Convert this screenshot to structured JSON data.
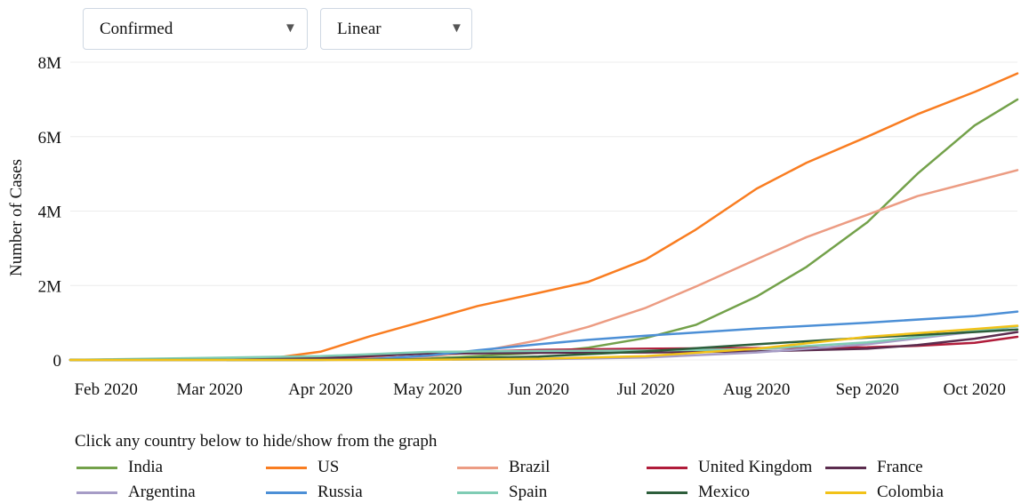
{
  "controls": {
    "metric": {
      "selected": "Confirmed"
    },
    "scale": {
      "selected": "Linear"
    }
  },
  "legend": {
    "title": "Click any country below to hide/show from the graph"
  },
  "chart_data": {
    "type": "line",
    "title": "",
    "xlabel": "",
    "ylabel": "Number of Cases",
    "x_axis_type": "date",
    "xlim": [
      "2020-01-22",
      "2020-10-13"
    ],
    "ylim": [
      0,
      8000000
    ],
    "yticks": [
      0,
      2000000,
      4000000,
      6000000,
      8000000
    ],
    "ytick_labels": [
      "0",
      "2M",
      "4M",
      "6M",
      "8M"
    ],
    "xticks": [
      "2020-02-01",
      "2020-03-01",
      "2020-04-01",
      "2020-05-01",
      "2020-06-01",
      "2020-07-01",
      "2020-08-01",
      "2020-09-01",
      "2020-10-01"
    ],
    "xtick_labels": [
      "Feb 2020",
      "Mar 2020",
      "Apr 2020",
      "May 2020",
      "Jun 2020",
      "Jul 2020",
      "Aug 2020",
      "Sep 2020",
      "Oct 2020"
    ],
    "grid": "horizontal",
    "legend_position": "bottom",
    "series": [
      {
        "name": "India",
        "color": "#73a14a",
        "x": [
          "2020-01-22",
          "2020-04-01",
          "2020-05-01",
          "2020-06-01",
          "2020-06-15",
          "2020-07-01",
          "2020-07-15",
          "2020-08-01",
          "2020-08-15",
          "2020-09-01",
          "2020-09-15",
          "2020-10-01",
          "2020-10-13"
        ],
        "y": [
          0,
          2000,
          35000,
          190000,
          330000,
          590000,
          940000,
          1700000,
          2500000,
          3700000,
          5000000,
          6300000,
          7000000
        ]
      },
      {
        "name": "US",
        "color": "#f97d21",
        "x": [
          "2020-01-22",
          "2020-03-15",
          "2020-04-01",
          "2020-04-15",
          "2020-05-01",
          "2020-05-15",
          "2020-06-01",
          "2020-06-15",
          "2020-07-01",
          "2020-07-15",
          "2020-08-01",
          "2020-08-15",
          "2020-09-01",
          "2020-09-15",
          "2020-10-01",
          "2020-10-13"
        ],
        "y": [
          0,
          3500,
          220000,
          640000,
          1070000,
          1450000,
          1800000,
          2100000,
          2700000,
          3500000,
          4600000,
          5300000,
          6000000,
          6600000,
          7200000,
          7700000
        ]
      },
      {
        "name": "Brazil",
        "color": "#ec9c83",
        "x": [
          "2020-01-22",
          "2020-04-01",
          "2020-05-01",
          "2020-05-15",
          "2020-06-01",
          "2020-06-15",
          "2020-07-01",
          "2020-07-15",
          "2020-08-01",
          "2020-08-15",
          "2020-09-01",
          "2020-09-15",
          "2020-10-01",
          "2020-10-13"
        ],
        "y": [
          0,
          6000,
          90000,
          220000,
          530000,
          890000,
          1400000,
          1970000,
          2700000,
          3300000,
          3900000,
          4400000,
          4800000,
          5100000
        ]
      },
      {
        "name": "United Kingdom",
        "color": "#b01c3a",
        "x": [
          "2020-01-22",
          "2020-04-01",
          "2020-05-01",
          "2020-06-01",
          "2020-07-01",
          "2020-08-01",
          "2020-09-01",
          "2020-09-15",
          "2020-10-01",
          "2020-10-13"
        ],
        "y": [
          0,
          30000,
          180000,
          270000,
          300000,
          320000,
          340000,
          380000,
          460000,
          620000
        ]
      },
      {
        "name": "France",
        "color": "#5b2c4e",
        "x": [
          "2020-01-22",
          "2020-04-01",
          "2020-05-01",
          "2020-06-01",
          "2020-07-01",
          "2020-08-01",
          "2020-09-01",
          "2020-09-15",
          "2020-10-01",
          "2020-10-13"
        ],
        "y": [
          0,
          55000,
          170000,
          190000,
          200000,
          230000,
          300000,
          400000,
          570000,
          750000
        ]
      },
      {
        "name": "Argentina",
        "color": "#a69cc6",
        "x": [
          "2020-01-22",
          "2020-04-01",
          "2020-05-01",
          "2020-06-01",
          "2020-07-01",
          "2020-08-01",
          "2020-09-01",
          "2020-10-01",
          "2020-10-13"
        ],
        "y": [
          0,
          1000,
          4500,
          17000,
          65000,
          200000,
          420000,
          760000,
          900000
        ]
      },
      {
        "name": "Russia",
        "color": "#4c8fd6",
        "x": [
          "2020-01-22",
          "2020-04-01",
          "2020-04-15",
          "2020-05-01",
          "2020-05-15",
          "2020-06-01",
          "2020-06-15",
          "2020-07-01",
          "2020-08-01",
          "2020-09-01",
          "2020-10-01",
          "2020-10-13"
        ],
        "y": [
          0,
          2500,
          25000,
          115000,
          260000,
          420000,
          540000,
          650000,
          840000,
          1000000,
          1180000,
          1300000
        ]
      },
      {
        "name": "Spain",
        "color": "#7fccb4",
        "x": [
          "2020-01-22",
          "2020-04-01",
          "2020-05-01",
          "2020-06-01",
          "2020-07-01",
          "2020-08-01",
          "2020-09-01",
          "2020-10-01",
          "2020-10-13"
        ],
        "y": [
          0,
          100000,
          215000,
          240000,
          250000,
          290000,
          470000,
          780000,
          900000
        ]
      },
      {
        "name": "Mexico",
        "color": "#2d5e3b",
        "x": [
          "2020-01-22",
          "2020-04-01",
          "2020-05-01",
          "2020-06-01",
          "2020-07-01",
          "2020-08-01",
          "2020-09-01",
          "2020-10-01",
          "2020-10-13"
        ],
        "y": [
          0,
          1200,
          20000,
          90000,
          230000,
          420000,
          600000,
          750000,
          820000
        ]
      },
      {
        "name": "Colombia",
        "color": "#f2c218",
        "x": [
          "2020-01-22",
          "2020-04-01",
          "2020-05-01",
          "2020-06-01",
          "2020-07-01",
          "2020-08-01",
          "2020-09-01",
          "2020-10-01",
          "2020-10-13"
        ],
        "y": [
          0,
          1000,
          7000,
          30000,
          100000,
          300000,
          620000,
          830000,
          920000
        ]
      }
    ]
  }
}
